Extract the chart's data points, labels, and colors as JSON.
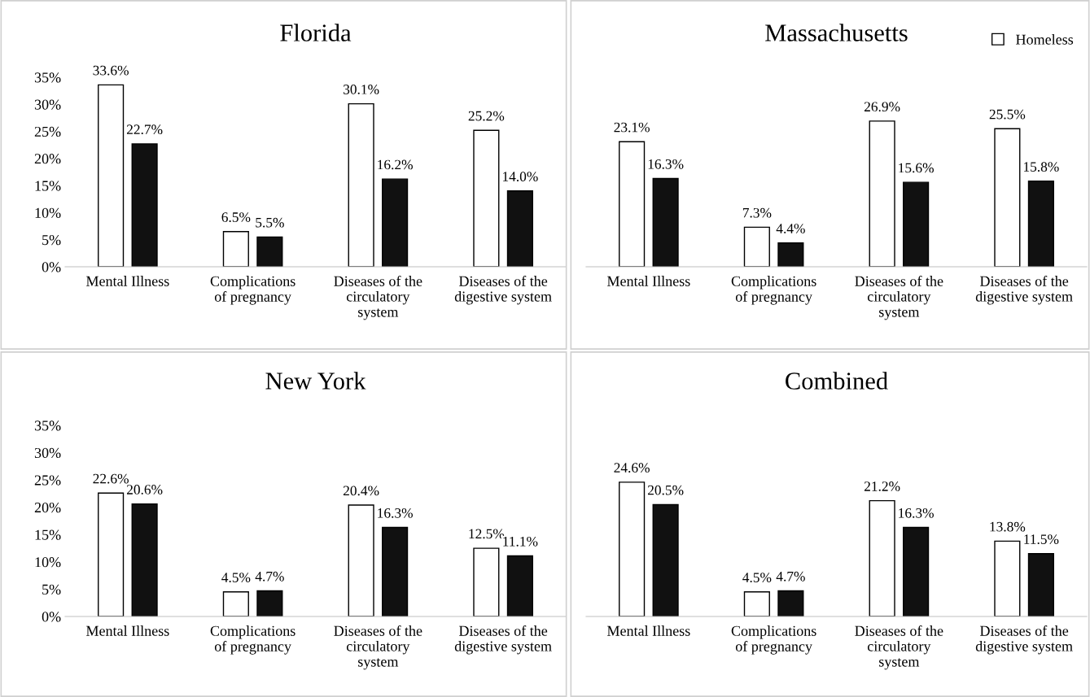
{
  "chart_data": [
    {
      "type": "bar",
      "title": "Florida",
      "categories": [
        "Mental Illness",
        "Complications\nof pregnancy",
        "Diseases of the\ncirculatory\nsystem",
        "Diseases of the\ndigestive system"
      ],
      "series": [
        {
          "color": "#ffffff",
          "values": [
            33.6,
            6.5,
            30.1,
            25.2
          ],
          "value_labels": [
            "33.6%",
            "6.5%",
            "30.1%",
            "25.2%"
          ]
        },
        {
          "color": "#111111",
          "values": [
            22.7,
            5.5,
            16.2,
            14.0
          ],
          "value_labels": [
            "22.7%",
            "5.5%",
            "16.2%",
            "14.0%"
          ]
        }
      ],
      "ylim": [
        0,
        35
      ],
      "yticks": [
        {
          "value": 0,
          "label": "0%"
        },
        {
          "value": 5,
          "label": "5%"
        },
        {
          "value": 10,
          "label": "10%"
        },
        {
          "value": 15,
          "label": "15%"
        },
        {
          "value": 20,
          "label": "20%"
        },
        {
          "value": 25,
          "label": "25%"
        },
        {
          "value": 30,
          "label": "30%"
        },
        {
          "value": 35,
          "label": "35%"
        }
      ],
      "grid": false,
      "legend": false
    },
    {
      "type": "bar",
      "title": "Massachusetts",
      "categories": [
        "Mental Illness",
        "Complications\nof pregnancy",
        "Diseases of the\ncirculatory\nsystem",
        "Diseases of the\ndigestive system"
      ],
      "series": [
        {
          "name": "Homeless",
          "color": "#ffffff",
          "values": [
            23.1,
            7.3,
            26.9,
            25.5
          ],
          "value_labels": [
            "23.1%",
            "7.3%",
            "26.9%",
            "25.5%"
          ]
        },
        {
          "color": "#111111",
          "values": [
            16.3,
            4.4,
            15.6,
            15.8
          ],
          "value_labels": [
            "16.3%",
            "4.4%",
            "15.6%",
            "15.8%"
          ]
        }
      ],
      "ylim": [
        0,
        35
      ],
      "tick_labels": "x",
      "grid": false,
      "legend": "top right"
    },
    {
      "type": "bar",
      "title": "New York",
      "categories": [
        "Mental Illness",
        "Complications\nof pregnancy",
        "Diseases of the\ncirculatory\nsystem",
        "Diseases of the\ndigestive system"
      ],
      "series": [
        {
          "color": "#ffffff",
          "values": [
            22.6,
            4.5,
            20.4,
            12.5
          ],
          "value_labels": [
            "22.6%",
            "4.5%",
            "20.4%",
            "12.5%"
          ]
        },
        {
          "color": "#111111",
          "values": [
            20.6,
            4.7,
            16.3,
            11.1
          ],
          "value_labels": [
            "20.6%",
            "4.7%",
            "16.3%",
            "11.1%"
          ]
        }
      ],
      "ylim": [
        0,
        35
      ],
      "yticks": [
        {
          "value": 0,
          "label": "0%"
        },
        {
          "value": 5,
          "label": "5%"
        },
        {
          "value": 10,
          "label": "10%"
        },
        {
          "value": 15,
          "label": "15%"
        },
        {
          "value": 20,
          "label": "20%"
        },
        {
          "value": 25,
          "label": "25%"
        },
        {
          "value": 30,
          "label": "30%"
        },
        {
          "value": 35,
          "label": "35%"
        }
      ],
      "grid": false,
      "legend": false
    },
    {
      "type": "bar",
      "title": "Combined",
      "categories": [
        "Mental Illness",
        "Complications\nof pregnancy",
        "Diseases of the\ncirculatory\nsystem",
        "Diseases of the\ndigestive system"
      ],
      "series": [
        {
          "color": "#ffffff",
          "values": [
            24.6,
            4.5,
            21.2,
            13.8
          ],
          "value_labels": [
            "24.6%",
            "4.5%",
            "21.2%",
            "13.8%"
          ]
        },
        {
          "color": "#111111",
          "values": [
            20.5,
            4.7,
            16.3,
            11.5
          ],
          "value_labels": [
            "20.5%",
            "4.7%",
            "16.3%",
            "11.5%"
          ]
        }
      ],
      "ylim": [
        0,
        35
      ],
      "tick_labels": "x",
      "grid": false,
      "legend": false
    }
  ]
}
